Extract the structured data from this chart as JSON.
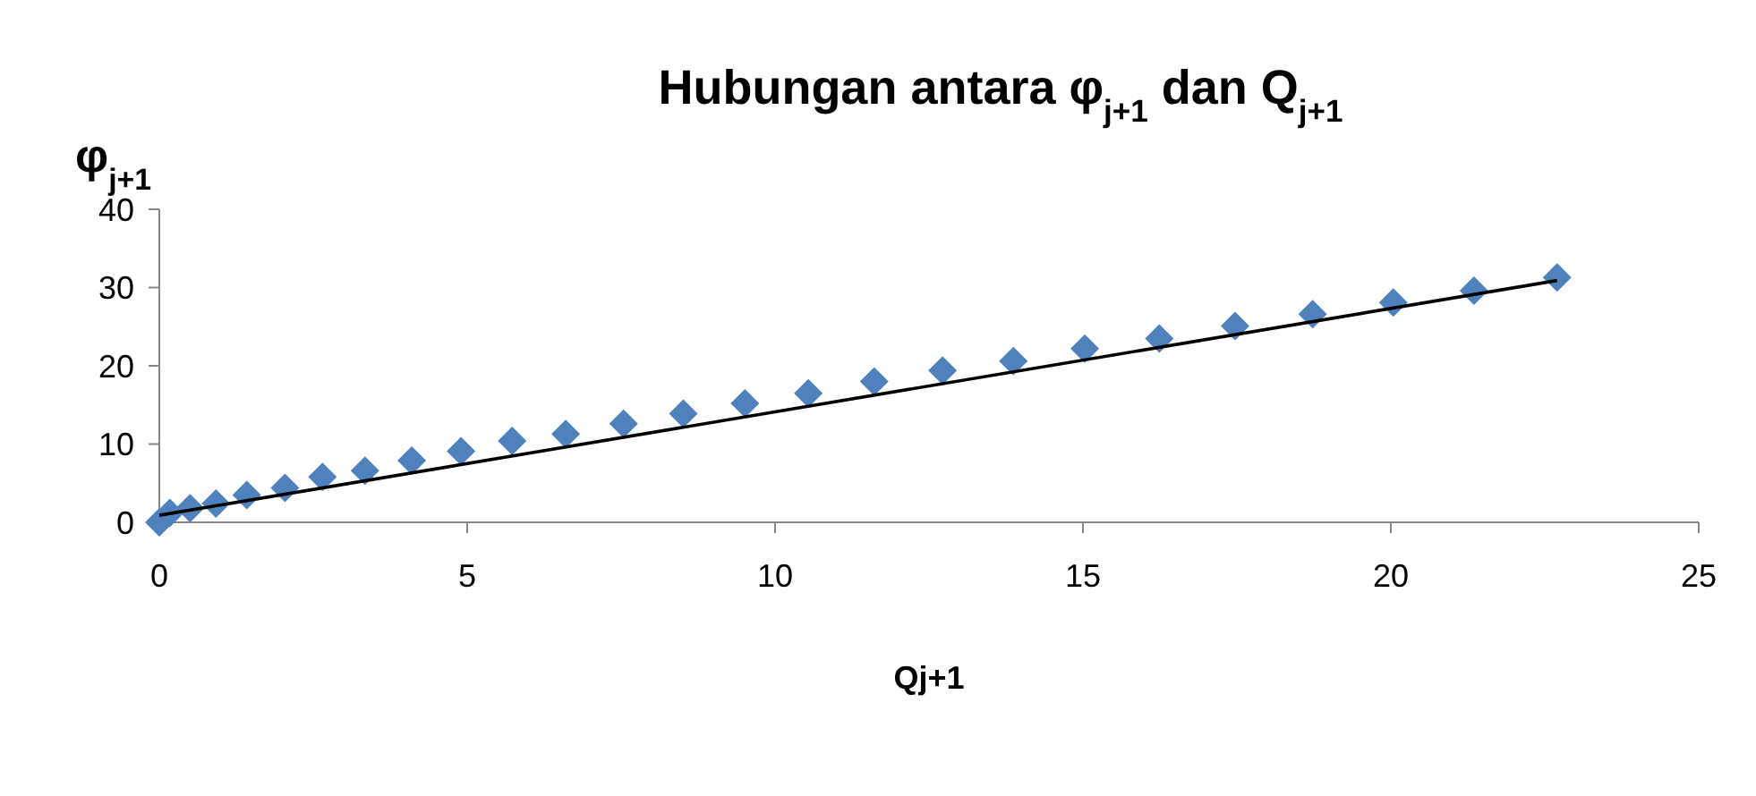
{
  "chart_data": {
    "type": "scatter",
    "title": "Hubungan antara φ$_{j+1}$ dan Q$_{j+1}$",
    "xlabel": "Qj+1",
    "ylabel": "φ$_{j+1}$",
    "xlim": [
      0,
      25
    ],
    "xticks": [
      0,
      5,
      10,
      15,
      20,
      25
    ],
    "ylim": [
      0,
      40
    ],
    "yticks": [
      0,
      10,
      20,
      30,
      40
    ],
    "grid": false,
    "marker": "diamond",
    "series": [
      {
        "color": "#4f81bd",
        "x": [
          0,
          0.17,
          0.5,
          0.92,
          1.42,
          2.04,
          2.65,
          3.34,
          4.1,
          4.9,
          5.73,
          6.6,
          7.54,
          8.51,
          9.51,
          10.54,
          11.61,
          12.72,
          13.87,
          15.03,
          16.24,
          17.47,
          18.73,
          20.04,
          21.35,
          22.7
        ],
        "values": [
          0,
          1.2,
          1.8,
          2.4,
          3.5,
          4.4,
          5.8,
          6.6,
          7.9,
          9.1,
          10.4,
          11.3,
          12.6,
          13.9,
          15.2,
          16.5,
          18.0,
          19.4,
          20.6,
          22.2,
          23.5,
          25.1,
          26.6,
          28.1,
          29.6,
          31.3
        ]
      },
      {
        "type": "line",
        "color": "#000000",
        "x": [
          0,
          22.7
        ],
        "values": [
          0.9,
          30.9
        ],
        "marker": "none",
        "line_style": "solid"
      }
    ]
  }
}
